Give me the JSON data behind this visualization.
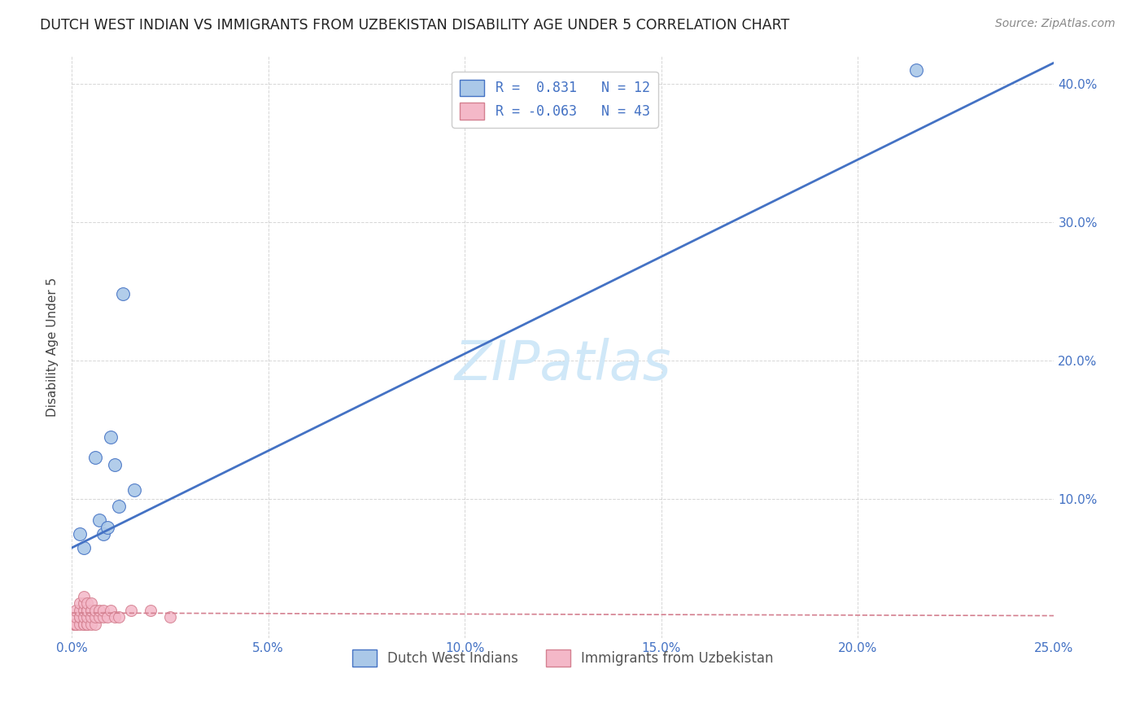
{
  "title": "DUTCH WEST INDIAN VS IMMIGRANTS FROM UZBEKISTAN DISABILITY AGE UNDER 5 CORRELATION CHART",
  "source": "Source: ZipAtlas.com",
  "xlabel": "",
  "ylabel": "Disability Age Under 5",
  "xlim": [
    0.0,
    0.25
  ],
  "ylim": [
    0.0,
    0.42
  ],
  "xticks": [
    0.0,
    0.05,
    0.1,
    0.15,
    0.2,
    0.25
  ],
  "yticks": [
    0.0,
    0.1,
    0.2,
    0.3,
    0.4
  ],
  "xtick_labels": [
    "0.0%",
    "5.0%",
    "10.0%",
    "15.0%",
    "20.0%",
    "25.0%"
  ],
  "ytick_labels": [
    "",
    "10.0%",
    "20.0%",
    "30.0%",
    "40.0%"
  ],
  "blue_R": 0.831,
  "blue_N": 12,
  "pink_R": -0.063,
  "pink_N": 43,
  "blue_color": "#aac8e8",
  "blue_line_color": "#4472c4",
  "pink_color": "#f4b8c8",
  "pink_line_color": "#d48090",
  "blue_scatter_x": [
    0.002,
    0.003,
    0.006,
    0.007,
    0.008,
    0.009,
    0.01,
    0.011,
    0.012,
    0.013,
    0.016,
    0.215
  ],
  "blue_scatter_y": [
    0.075,
    0.065,
    0.13,
    0.085,
    0.075,
    0.08,
    0.145,
    0.125,
    0.095,
    0.248,
    0.107,
    0.41
  ],
  "pink_scatter_x": [
    0.0005,
    0.0005,
    0.001,
    0.001,
    0.001,
    0.001,
    0.001,
    0.002,
    0.002,
    0.002,
    0.002,
    0.002,
    0.003,
    0.003,
    0.003,
    0.003,
    0.003,
    0.003,
    0.004,
    0.004,
    0.004,
    0.004,
    0.004,
    0.004,
    0.005,
    0.005,
    0.005,
    0.005,
    0.005,
    0.006,
    0.006,
    0.006,
    0.007,
    0.007,
    0.008,
    0.008,
    0.009,
    0.01,
    0.011,
    0.012,
    0.015,
    0.02,
    0.025
  ],
  "pink_scatter_y": [
    0.01,
    0.01,
    0.01,
    0.01,
    0.01,
    0.015,
    0.02,
    0.01,
    0.015,
    0.015,
    0.02,
    0.025,
    0.01,
    0.01,
    0.015,
    0.02,
    0.025,
    0.03,
    0.01,
    0.01,
    0.015,
    0.02,
    0.02,
    0.025,
    0.01,
    0.015,
    0.02,
    0.02,
    0.025,
    0.01,
    0.015,
    0.02,
    0.015,
    0.02,
    0.015,
    0.02,
    0.015,
    0.02,
    0.015,
    0.015,
    0.02,
    0.02,
    0.015
  ],
  "blue_line_x0": 0.0,
  "blue_line_y0": 0.065,
  "blue_line_x1": 0.25,
  "blue_line_y1": 0.415,
  "pink_line_x0": 0.0,
  "pink_line_y0": 0.018,
  "pink_line_x1": 0.25,
  "pink_line_y1": 0.016,
  "watermark": "ZIPatlas",
  "watermark_color": "#d0e8f8",
  "legend_label_blue": "Dutch West Indians",
  "legend_label_pink": "Immigrants from Uzbekistan",
  "background_color": "#ffffff",
  "grid_color": "#cccccc"
}
